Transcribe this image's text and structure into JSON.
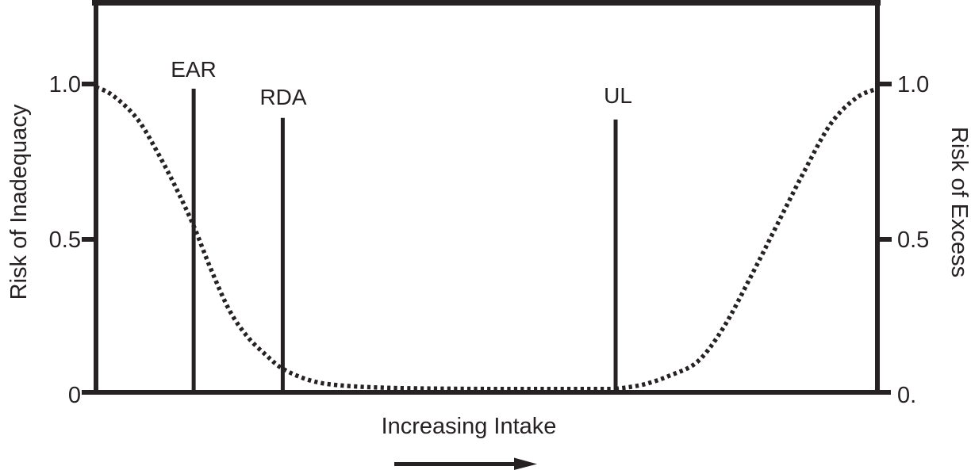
{
  "colors": {
    "ink": "#262223",
    "background": "#ffffff"
  },
  "chart_data": {
    "type": "line",
    "xlabel": "Increasing Intake",
    "x_axis_arrow_direction": "right",
    "ylabel_left": "Risk of Inadequacy",
    "ylabel_right": "Risk of Excess",
    "ylim": [
      0,
      1
    ],
    "x_range_normalized": [
      0,
      1
    ],
    "grid": false,
    "legend": "none",
    "ytick_values": [
      1.0,
      0.5,
      0
    ],
    "yticks_left": [
      "1.0",
      "0.5",
      "0"
    ],
    "yticks_right": [
      "1.0",
      "0.5",
      "0."
    ],
    "reference_lines": [
      {
        "label": "EAR",
        "x": 0.125,
        "top": 0.985
      },
      {
        "label": "RDA",
        "x": 0.239,
        "top": 0.89
      },
      {
        "label": "UL",
        "x": 0.665,
        "top": 0.885
      }
    ],
    "series": [
      {
        "name": "Risk of Inadequacy",
        "line_style": "dotted",
        "points": [
          [
            0.0,
            0.99
          ],
          [
            0.014,
            0.975
          ],
          [
            0.028,
            0.95
          ],
          [
            0.045,
            0.91
          ],
          [
            0.059,
            0.865
          ],
          [
            0.074,
            0.8
          ],
          [
            0.089,
            0.73
          ],
          [
            0.103,
            0.66
          ],
          [
            0.125,
            0.54
          ],
          [
            0.147,
            0.4
          ],
          [
            0.171,
            0.265
          ],
          [
            0.194,
            0.18
          ],
          [
            0.218,
            0.12
          ],
          [
            0.24,
            0.075
          ],
          [
            0.275,
            0.038
          ],
          [
            0.315,
            0.022
          ],
          [
            0.385,
            0.014
          ],
          [
            0.5,
            0.011
          ],
          [
            0.6,
            0.011
          ],
          [
            0.665,
            0.011
          ]
        ]
      },
      {
        "name": "Risk of Excess",
        "line_style": "dotted",
        "points": [
          [
            0.665,
            0.011
          ],
          [
            0.7,
            0.025
          ],
          [
            0.735,
            0.055
          ],
          [
            0.77,
            0.1
          ],
          [
            0.803,
            0.21
          ],
          [
            0.838,
            0.375
          ],
          [
            0.871,
            0.54
          ],
          [
            0.905,
            0.71
          ],
          [
            0.94,
            0.87
          ],
          [
            0.973,
            0.955
          ],
          [
            1.0,
            0.985
          ]
        ]
      }
    ]
  }
}
